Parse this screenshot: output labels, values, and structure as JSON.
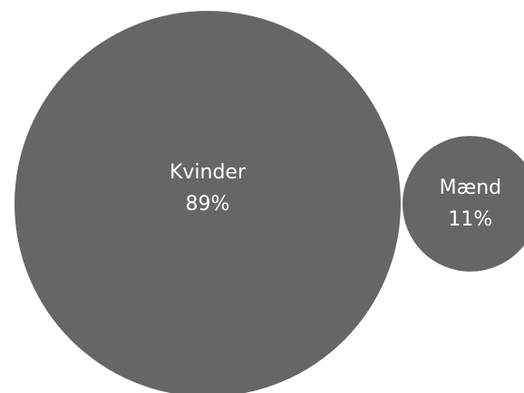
{
  "chart_data": {
    "type": "bubble",
    "title": "",
    "items": [
      {
        "name": "Kvinder",
        "value": 89,
        "label": "89%"
      },
      {
        "name": "Mænd",
        "value": 11,
        "label": "11%"
      }
    ],
    "bubble_color": "#666666",
    "label_color": "#ffffff"
  }
}
